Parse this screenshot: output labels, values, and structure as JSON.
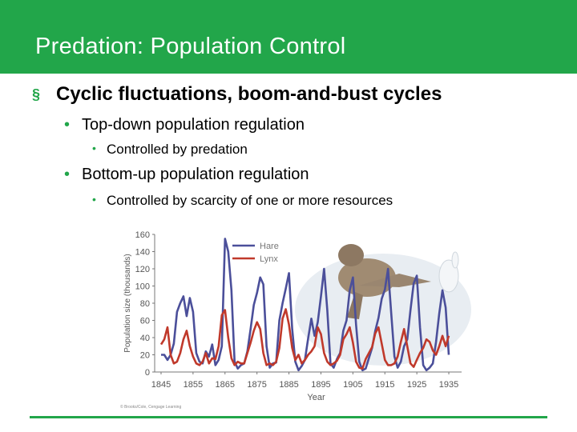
{
  "slide": {
    "title": "Predation: Population Control",
    "bullets": {
      "b1": "Cyclic fluctuations, boom-and-bust cycles",
      "b1_1": "Top-down population regulation",
      "b1_1_1": "Controlled by predation",
      "b1_2": "Bottom-up population regulation",
      "b1_2_1": "Controlled by scarcity of one or more resources"
    },
    "markers": {
      "square": "§",
      "dot": "•"
    },
    "credit": "© Brooks/Cole, Cengage Learning"
  },
  "colors": {
    "accent": "#22a64a",
    "hare": "#4b4f9a",
    "lynx": "#c0392b"
  },
  "chart_data": {
    "type": "line",
    "xlabel": "Year",
    "ylabel": "Population size (thousands)",
    "xticks": [
      "1845",
      "1855",
      "1865",
      "1875",
      "1885",
      "1895",
      "1905",
      "1915",
      "1925",
      "1935"
    ],
    "yticks": [
      "0",
      "20",
      "40",
      "60",
      "80",
      "100",
      "120",
      "140",
      "160"
    ],
    "xlim": [
      1843,
      1939
    ],
    "ylim": [
      0,
      160
    ],
    "legend": "top-left",
    "series": [
      {
        "name": "Hare",
        "x": [
          1845,
          1846,
          1847,
          1848,
          1849,
          1850,
          1851,
          1852,
          1853,
          1854,
          1855,
          1856,
          1857,
          1858,
          1859,
          1860,
          1861,
          1862,
          1863,
          1864,
          1865,
          1866,
          1867,
          1868,
          1869,
          1870,
          1871,
          1872,
          1873,
          1874,
          1875,
          1876,
          1877,
          1878,
          1879,
          1880,
          1881,
          1882,
          1883,
          1884,
          1885,
          1886,
          1887,
          1888,
          1889,
          1890,
          1891,
          1892,
          1893,
          1894,
          1895,
          1896,
          1897,
          1898,
          1899,
          1900,
          1901,
          1902,
          1903,
          1904,
          1905,
          1906,
          1907,
          1908,
          1909,
          1910,
          1911,
          1912,
          1913,
          1914,
          1915,
          1916,
          1917,
          1918,
          1919,
          1920,
          1921,
          1922,
          1923,
          1924,
          1925,
          1926,
          1927,
          1928,
          1929,
          1930,
          1931,
          1932,
          1933,
          1934,
          1935
        ],
        "values": [
          20,
          20,
          14,
          20,
          33,
          70,
          80,
          88,
          65,
          86,
          70,
          22,
          12,
          10,
          24,
          18,
          32,
          8,
          14,
          30,
          155,
          140,
          95,
          12,
          4,
          8,
          10,
          24,
          50,
          78,
          92,
          110,
          102,
          30,
          5,
          10,
          11,
          60,
          80,
          97,
          115,
          50,
          12,
          2,
          7,
          14,
          39,
          62,
          42,
          58,
          88,
          120,
          72,
          10,
          5,
          15,
          22,
          48,
          60,
          95,
          110,
          55,
          12,
          2,
          4,
          16,
          28,
          48,
          63,
          85,
          96,
          120,
          68,
          18,
          5,
          12,
          30,
          38,
          72,
          103,
          112,
          52,
          8,
          2,
          5,
          10,
          35,
          68,
          95,
          75,
          20
        ]
      },
      {
        "name": "Lynx",
        "x": [
          1845,
          1846,
          1847,
          1848,
          1849,
          1850,
          1851,
          1852,
          1853,
          1854,
          1855,
          1856,
          1857,
          1858,
          1859,
          1860,
          1861,
          1862,
          1863,
          1864,
          1865,
          1866,
          1867,
          1868,
          1869,
          1870,
          1871,
          1872,
          1873,
          1874,
          1875,
          1876,
          1877,
          1878,
          1879,
          1880,
          1881,
          1882,
          1883,
          1884,
          1885,
          1886,
          1887,
          1888,
          1889,
          1890,
          1891,
          1892,
          1893,
          1894,
          1895,
          1896,
          1897,
          1898,
          1899,
          1900,
          1901,
          1902,
          1903,
          1904,
          1905,
          1906,
          1907,
          1908,
          1909,
          1910,
          1911,
          1912,
          1913,
          1914,
          1915,
          1916,
          1917,
          1918,
          1919,
          1920,
          1921,
          1922,
          1923,
          1924,
          1925,
          1926,
          1927,
          1928,
          1929,
          1930,
          1931,
          1932,
          1933,
          1934,
          1935
        ],
        "values": [
          32,
          38,
          52,
          20,
          10,
          12,
          22,
          38,
          48,
          30,
          18,
          10,
          8,
          12,
          22,
          10,
          16,
          15,
          30,
          66,
          72,
          40,
          16,
          8,
          12,
          10,
          10,
          22,
          34,
          48,
          58,
          50,
          22,
          8,
          10,
          8,
          12,
          28,
          62,
          73,
          55,
          28,
          14,
          20,
          10,
          14,
          20,
          24,
          30,
          52,
          44,
          22,
          12,
          8,
          10,
          13,
          20,
          38,
          44,
          52,
          34,
          12,
          5,
          4,
          15,
          22,
          29,
          45,
          52,
          33,
          14,
          8,
          8,
          10,
          18,
          35,
          50,
          30,
          10,
          6,
          14,
          22,
          28,
          38,
          35,
          25,
          20,
          30,
          42,
          30,
          42
        ]
      }
    ]
  }
}
